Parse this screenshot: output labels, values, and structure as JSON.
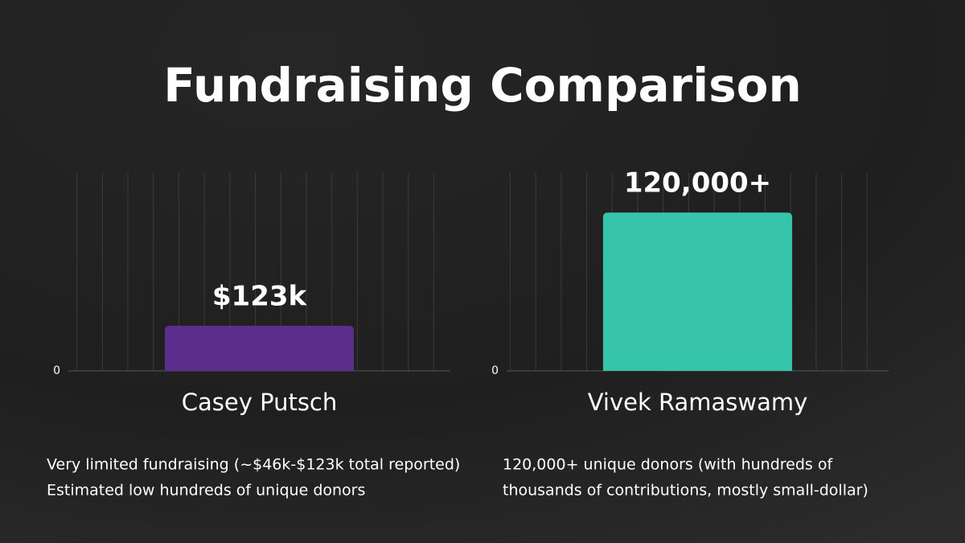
{
  "title": "Fundraising Comparison",
  "chart_data": [
    {
      "type": "bar",
      "categories": [
        "Casey Putsch"
      ],
      "values": [
        123000
      ],
      "value_labels": [
        "$123k"
      ],
      "color": "#5b2e8c",
      "ylim": [
        0,
        540000
      ],
      "yticks": [
        0
      ],
      "notes": [
        "Very limited fundraising (~$46k-$123k total reported)",
        "Estimated low hundreds of unique donors"
      ]
    },
    {
      "type": "bar",
      "categories": [
        "Vivek Ramaswamy"
      ],
      "values": [
        120000
      ],
      "value_labels": [
        "120,000+"
      ],
      "color": "#36c4ab",
      "ylim": [
        0,
        150000
      ],
      "yticks": [
        0
      ],
      "notes": [
        "120,000+ unique donors (with hundreds of",
        "thousands of contributions, mostly small-dollar)"
      ]
    }
  ]
}
